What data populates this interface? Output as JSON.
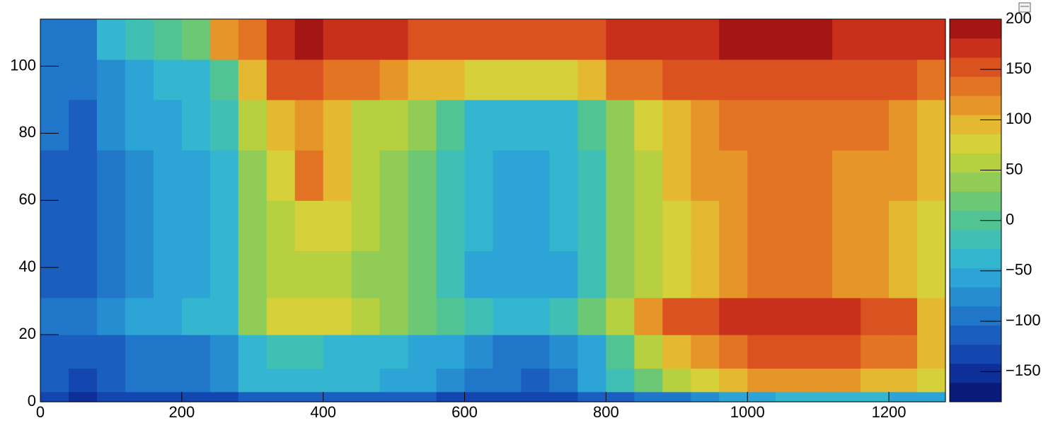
{
  "chart_data": {
    "type": "heatmap",
    "xbins": [
      0,
      40,
      80,
      120,
      160,
      200,
      240,
      280,
      320,
      360,
      400,
      440,
      480,
      520,
      560,
      600,
      640,
      680,
      720,
      760,
      800,
      840,
      880,
      920,
      960,
      1000,
      1040,
      1080,
      1120,
      1160,
      1200,
      1240,
      1280
    ],
    "ybins": [
      0,
      3,
      10,
      20,
      31,
      45,
      60,
      75,
      90,
      102,
      114
    ],
    "z": [
      [
        -140,
        -150,
        -140,
        -140,
        -140,
        -140,
        -130,
        -120,
        -110,
        -110,
        -120,
        -120,
        -120,
        -120,
        -130,
        -140,
        -140,
        -140,
        -130,
        -120,
        -110,
        -100,
        -90,
        -80,
        -60,
        -50,
        -40,
        -40,
        -40,
        -40,
        -50,
        -60
      ],
      [
        -120,
        -130,
        -110,
        -100,
        -100,
        -90,
        -80,
        -40,
        -30,
        -30,
        -40,
        -40,
        -50,
        -60,
        -70,
        -90,
        -100,
        -110,
        -90,
        -60,
        -20,
        20,
        50,
        80,
        100,
        110,
        110,
        110,
        110,
        100,
        100,
        80
      ],
      [
        -110,
        -120,
        -110,
        -100,
        -100,
        -90,
        -80,
        -40,
        -20,
        -20,
        -30,
        -30,
        -40,
        -50,
        -60,
        -80,
        -90,
        -100,
        -80,
        -50,
        0,
        50,
        90,
        120,
        140,
        150,
        150,
        150,
        150,
        140,
        130,
        90
      ],
      [
        -100,
        -100,
        -80,
        -60,
        -50,
        -40,
        -30,
        40,
        70,
        80,
        70,
        50,
        40,
        20,
        0,
        -20,
        -30,
        -30,
        -20,
        10,
        60,
        120,
        150,
        160,
        170,
        170,
        170,
        170,
        170,
        160,
        160,
        100
      ],
      [
        -110,
        -120,
        -90,
        -70,
        -60,
        -50,
        -30,
        40,
        60,
        60,
        50,
        40,
        30,
        10,
        -20,
        -50,
        -60,
        -60,
        -50,
        -20,
        30,
        60,
        80,
        100,
        120,
        130,
        130,
        130,
        120,
        110,
        100,
        70
      ],
      [
        -110,
        -120,
        -90,
        -70,
        -60,
        -50,
        -30,
        40,
        60,
        80,
        70,
        50,
        40,
        20,
        -10,
        -40,
        -50,
        -50,
        -40,
        -10,
        30,
        60,
        80,
        100,
        120,
        130,
        130,
        130,
        120,
        110,
        100,
        80
      ],
      [
        -110,
        -120,
        -90,
        -70,
        -60,
        -50,
        -30,
        40,
        70,
        140,
        90,
        50,
        40,
        20,
        -10,
        -40,
        -50,
        -50,
        -40,
        -10,
        30,
        60,
        90,
        110,
        120,
        130,
        130,
        130,
        120,
        110,
        110,
        90
      ],
      [
        -100,
        -110,
        -80,
        -60,
        -50,
        -40,
        -20,
        60,
        90,
        110,
        90,
        60,
        50,
        30,
        0,
        -30,
        -40,
        -40,
        -30,
        0,
        40,
        70,
        100,
        120,
        130,
        140,
        140,
        140,
        130,
        130,
        120,
        100
      ],
      [
        -100,
        -100,
        -70,
        -50,
        -40,
        -30,
        0,
        100,
        150,
        150,
        140,
        130,
        120,
        100,
        90,
        80,
        80,
        80,
        80,
        100,
        130,
        140,
        150,
        150,
        160,
        160,
        160,
        160,
        150,
        150,
        150,
        140
      ],
      [
        -100,
        -90,
        -40,
        -20,
        0,
        20,
        110,
        140,
        180,
        190,
        180,
        170,
        170,
        160,
        160,
        150,
        150,
        150,
        150,
        160,
        170,
        170,
        180,
        180,
        190,
        190,
        190,
        190,
        180,
        180,
        180,
        170
      ]
    ],
    "xlim": [
      0,
      1280
    ],
    "ylim": [
      0,
      114
    ],
    "zlim": [
      -180,
      200
    ],
    "xticks": [
      0,
      200,
      400,
      600,
      800,
      1000,
      1200
    ],
    "yticks": [
      0,
      20,
      40,
      60,
      80,
      100
    ],
    "zticks": [
      {
        "value": -150,
        "label": "−150"
      },
      {
        "value": -100,
        "label": "−100"
      },
      {
        "value": -50,
        "label": "−50"
      },
      0,
      50,
      100,
      150,
      200
    ],
    "colors": [
      "#0a1a7a",
      "#0f2f98",
      "#1446b0",
      "#1a5ec0",
      "#2076c8",
      "#268ed0",
      "#2ca4d6",
      "#34b6d0",
      "#40bfb4",
      "#52c494",
      "#6cc874",
      "#90cc56",
      "#b6d040",
      "#d6d03a",
      "#e4b830",
      "#e69628",
      "#e27424",
      "#da5220",
      "#c8301c",
      "#a41614"
    ]
  }
}
